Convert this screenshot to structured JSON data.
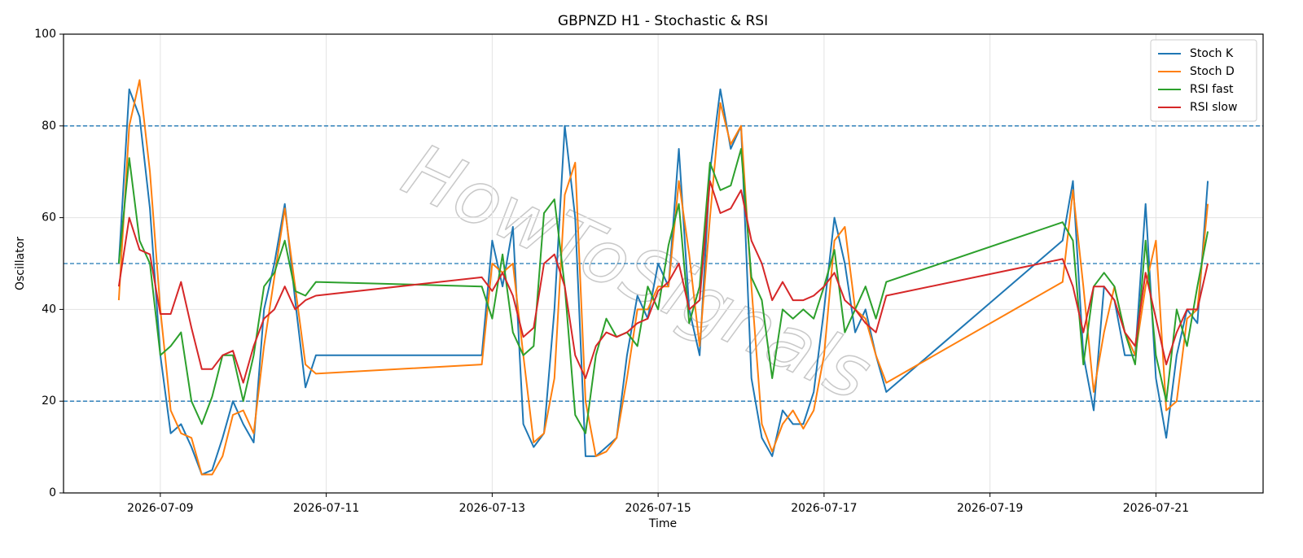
{
  "chart_data": {
    "type": "line",
    "title": "GBPNZD H1 - Stochastic & RSI",
    "x_label": "Time",
    "y_label": "Oscillator",
    "watermark": "HowToSignals",
    "x": [
      "2026-07-08 12:00",
      "2026-07-08 15:00",
      "2026-07-08 18:00",
      "2026-07-08 21:00",
      "2026-07-09 00:00",
      "2026-07-09 03:00",
      "2026-07-09 06:00",
      "2026-07-09 09:00",
      "2026-07-09 12:00",
      "2026-07-09 15:00",
      "2026-07-09 18:00",
      "2026-07-09 21:00",
      "2026-07-10 00:00",
      "2026-07-10 03:00",
      "2026-07-10 06:00",
      "2026-07-10 09:00",
      "2026-07-10 12:00",
      "2026-07-10 15:00",
      "2026-07-10 18:00",
      "2026-07-10 21:00",
      "2026-07-12 21:00",
      "2026-07-13 00:00",
      "2026-07-13 03:00",
      "2026-07-13 06:00",
      "2026-07-13 09:00",
      "2026-07-13 12:00",
      "2026-07-13 15:00",
      "2026-07-13 18:00",
      "2026-07-13 21:00",
      "2026-07-14 00:00",
      "2026-07-14 03:00",
      "2026-07-14 06:00",
      "2026-07-14 09:00",
      "2026-07-14 12:00",
      "2026-07-14 15:00",
      "2026-07-14 18:00",
      "2026-07-14 21:00",
      "2026-07-15 00:00",
      "2026-07-15 03:00",
      "2026-07-15 06:00",
      "2026-07-15 09:00",
      "2026-07-15 12:00",
      "2026-07-15 15:00",
      "2026-07-15 18:00",
      "2026-07-15 21:00",
      "2026-07-16 00:00",
      "2026-07-16 03:00",
      "2026-07-16 06:00",
      "2026-07-16 09:00",
      "2026-07-16 12:00",
      "2026-07-16 15:00",
      "2026-07-16 18:00",
      "2026-07-16 21:00",
      "2026-07-17 00:00",
      "2026-07-17 03:00",
      "2026-07-17 06:00",
      "2026-07-17 09:00",
      "2026-07-17 12:00",
      "2026-07-17 15:00",
      "2026-07-17 18:00",
      "2026-07-19 21:00",
      "2026-07-20 00:00",
      "2026-07-20 03:00",
      "2026-07-20 06:00",
      "2026-07-20 09:00",
      "2026-07-20 12:00",
      "2026-07-20 15:00",
      "2026-07-20 18:00",
      "2026-07-20 21:00",
      "2026-07-21 00:00",
      "2026-07-21 03:00",
      "2026-07-21 06:00",
      "2026-07-21 09:00",
      "2026-07-21 12:00",
      "2026-07-21 15:00"
    ],
    "series": [
      {
        "name": "Stoch K",
        "color": "#1f77b4",
        "values": [
          50,
          88,
          82,
          62,
          30,
          13,
          15,
          10,
          4,
          5,
          12,
          20,
          15,
          11,
          40,
          50,
          63,
          42,
          23,
          30,
          30,
          55,
          45,
          58,
          15,
          10,
          13,
          40,
          80,
          60,
          8,
          8,
          10,
          12,
          30,
          43,
          38,
          50,
          45,
          75,
          40,
          30,
          70,
          88,
          75,
          80,
          25,
          12,
          8,
          18,
          15,
          15,
          22,
          40,
          60,
          50,
          35,
          40,
          30,
          22,
          55,
          68,
          30,
          18,
          45,
          42,
          30,
          30,
          63,
          25,
          12,
          30,
          40,
          37,
          68
        ]
      },
      {
        "name": "Stoch D",
        "color": "#ff7f0e",
        "values": [
          42,
          80,
          90,
          70,
          40,
          18,
          13,
          12,
          4,
          4,
          8,
          17,
          18,
          13,
          32,
          47,
          62,
          45,
          28,
          26,
          28,
          50,
          48,
          50,
          30,
          11,
          13,
          25,
          65,
          72,
          20,
          8,
          9,
          12,
          25,
          40,
          40,
          45,
          45,
          68,
          52,
          32,
          60,
          85,
          76,
          80,
          45,
          15,
          9,
          15,
          18,
          14,
          18,
          30,
          55,
          58,
          40,
          38,
          30,
          24,
          46,
          66,
          45,
          22,
          35,
          45,
          35,
          30,
          45,
          55,
          18,
          20,
          38,
          40,
          63
        ]
      },
      {
        "name": "RSI fast",
        "color": "#2ca02c",
        "values": [
          50,
          73,
          55,
          50,
          30,
          32,
          35,
          20,
          15,
          21,
          30,
          30,
          20,
          30,
          45,
          48,
          55,
          44,
          43,
          46,
          45,
          38,
          52,
          35,
          30,
          32,
          61,
          64,
          45,
          17,
          13,
          30,
          38,
          34,
          35,
          32,
          45,
          40,
          54,
          63,
          37,
          45,
          72,
          66,
          67,
          75,
          47,
          42,
          25,
          40,
          38,
          40,
          38,
          45,
          53,
          35,
          40,
          45,
          38,
          46,
          59,
          55,
          28,
          45,
          48,
          45,
          35,
          28,
          55,
          30,
          20,
          40,
          32,
          45,
          57
        ]
      },
      {
        "name": "RSI slow",
        "color": "#d62728",
        "values": [
          45,
          60,
          53,
          52,
          39,
          39,
          46,
          36,
          27,
          27,
          30,
          31,
          24,
          32,
          38,
          40,
          45,
          40,
          42,
          43,
          47,
          44,
          48,
          43,
          34,
          36,
          50,
          52,
          45,
          30,
          25,
          32,
          35,
          34,
          35,
          37,
          38,
          44,
          46,
          50,
          40,
          42,
          68,
          61,
          62,
          66,
          55,
          50,
          42,
          46,
          42,
          42,
          43,
          45,
          48,
          42,
          40,
          37,
          35,
          43,
          51,
          45,
          35,
          45,
          45,
          42,
          35,
          32,
          48,
          38,
          28,
          35,
          40,
          40,
          50
        ]
      }
    ],
    "hlines": [
      20,
      50,
      80
    ],
    "hline_color": "#1f77b4",
    "xlim": [
      "2026-07-07 20:00",
      "2026-07-22 07:00"
    ],
    "xticks": [
      "2026-07-09",
      "2026-07-11",
      "2026-07-13",
      "2026-07-15",
      "2026-07-17",
      "2026-07-19",
      "2026-07-21"
    ],
    "ylim": [
      0,
      100
    ],
    "yticks": [
      0,
      20,
      40,
      60,
      80,
      100
    ],
    "grid": true,
    "legend": "upper right"
  }
}
